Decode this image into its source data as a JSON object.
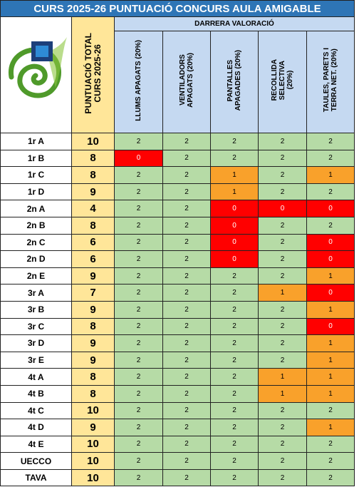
{
  "header": {
    "title": "CURS 2025-26 PUNTUACIÓ CONCURS AULA AMIGABLE",
    "total_label": "PUNTUACIÓ TOTAL\nCURS 2025-26",
    "group_label": "DARRERA VALORACIÓ",
    "columns": [
      "LLUMS APAGATS (20%)",
      "VENTILADORS\nAPAGATS (20%)",
      "PANTALLES\nAPAGADES (20%)",
      "RECOLLIDA\nSELECTIVA\n(20%)",
      "TAULES, PARETS I\nTERRA NET. (20%)"
    ]
  },
  "table": {
    "rows": [
      {
        "name": "1r A",
        "total": 10,
        "scores": [
          2,
          2,
          2,
          2,
          2
        ]
      },
      {
        "name": "1r B",
        "total": 8,
        "scores": [
          0,
          2,
          2,
          2,
          2
        ]
      },
      {
        "name": "1r C",
        "total": 8,
        "scores": [
          2,
          2,
          1,
          2,
          1
        ]
      },
      {
        "name": "1r D",
        "total": 9,
        "scores": [
          2,
          2,
          1,
          2,
          2
        ]
      },
      {
        "name": "2n A",
        "total": 4,
        "scores": [
          2,
          2,
          0,
          0,
          0
        ]
      },
      {
        "name": "2n B",
        "total": 8,
        "scores": [
          2,
          2,
          0,
          2,
          2
        ]
      },
      {
        "name": "2n C",
        "total": 6,
        "scores": [
          2,
          2,
          0,
          2,
          0
        ]
      },
      {
        "name": "2n D",
        "total": 6,
        "scores": [
          2,
          2,
          0,
          2,
          0
        ]
      },
      {
        "name": "2n E",
        "total": 9,
        "scores": [
          2,
          2,
          2,
          2,
          1
        ]
      },
      {
        "name": "3r A",
        "total": 7,
        "scores": [
          2,
          2,
          2,
          1,
          0
        ]
      },
      {
        "name": "3r B",
        "total": 9,
        "scores": [
          2,
          2,
          2,
          2,
          1
        ]
      },
      {
        "name": "3r C",
        "total": 8,
        "scores": [
          2,
          2,
          2,
          2,
          0
        ]
      },
      {
        "name": "3r D",
        "total": 9,
        "scores": [
          2,
          2,
          2,
          2,
          1
        ]
      },
      {
        "name": "3r E",
        "total": 9,
        "scores": [
          2,
          2,
          2,
          2,
          1
        ]
      },
      {
        "name": "4t A",
        "total": 8,
        "scores": [
          2,
          2,
          2,
          1,
          1
        ]
      },
      {
        "name": "4t B",
        "total": 8,
        "scores": [
          2,
          2,
          2,
          1,
          1
        ]
      },
      {
        "name": "4t C",
        "total": 10,
        "scores": [
          2,
          2,
          2,
          2,
          2
        ]
      },
      {
        "name": "4t D",
        "total": 9,
        "scores": [
          2,
          2,
          2,
          2,
          1
        ]
      },
      {
        "name": "4t E",
        "total": 10,
        "scores": [
          2,
          2,
          2,
          2,
          2
        ]
      },
      {
        "name": "UECCO",
        "total": 10,
        "scores": [
          2,
          2,
          2,
          2,
          2
        ]
      },
      {
        "name": "TAVA",
        "total": 10,
        "scores": [
          2,
          2,
          2,
          2,
          2
        ]
      }
    ]
  }
}
